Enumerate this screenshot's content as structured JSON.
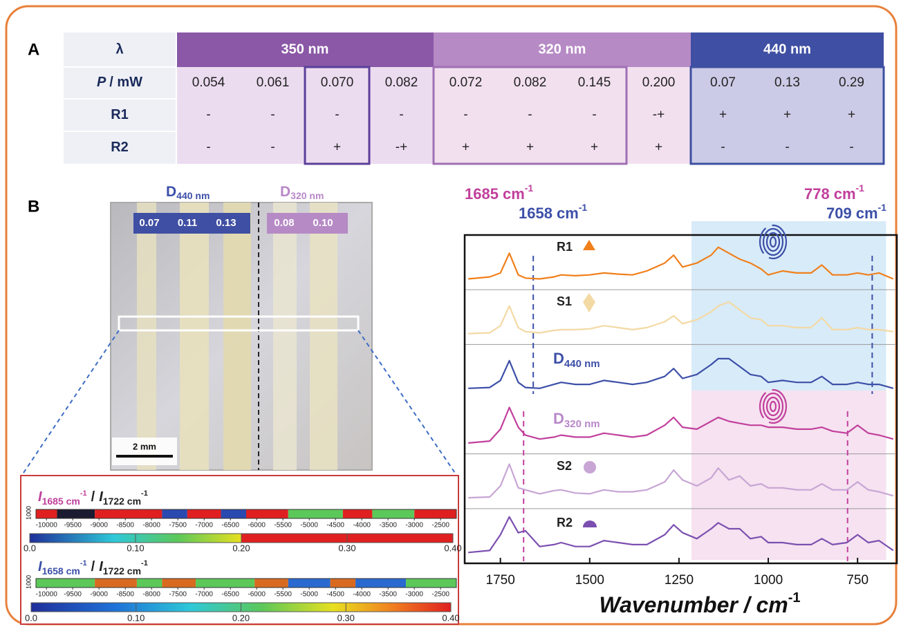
{
  "panel_a": {
    "label": "A",
    "table": {
      "header": [
        "λ",
        "350 nm",
        "320 nm",
        "440 nm"
      ],
      "rows": [
        {
          "label": {
            "symbol": "P",
            "unit": "/ mW"
          },
          "cells": [
            "0.054",
            "0.061",
            "0.070",
            "0.082",
            "0.072",
            "0.082",
            "0.145",
            "0.200",
            "0.07",
            "0.13",
            "0.29"
          ]
        },
        {
          "label": "R1",
          "cells": [
            "-",
            "-",
            "-",
            "-",
            "-",
            "-",
            "-",
            "-+",
            "+",
            "+",
            "+"
          ]
        },
        {
          "label": "R2",
          "cells": [
            "-",
            "-",
            "+",
            "-+",
            "+",
            "+",
            "+",
            "+",
            "-",
            "-",
            "-"
          ]
        }
      ]
    }
  },
  "panel_b": {
    "label": "B",
    "photo": {
      "labels": [
        {
          "name": "D",
          "subscript": "440 nm",
          "values": [
            "0.07",
            "0.11",
            "0.13"
          ]
        },
        {
          "name": "D",
          "subscript": "320 nm",
          "values": [
            "0.08",
            "0.10"
          ]
        }
      ],
      "scale_bar": "2 mm"
    },
    "maps": [
      {
        "numerator": {
          "symbol": "I",
          "subscript": "1685 cm",
          "sup": "-1"
        },
        "separator": "/",
        "denominator": {
          "symbol": "I",
          "subscript": "1722 cm",
          "sup": "-1"
        },
        "y_label": "1000",
        "xlim": [
          -10200,
          -2200
        ],
        "xticks": [
          -10000,
          -9500,
          -9000,
          -8500,
          -8000,
          -7500,
          -7000,
          -6500,
          -6000,
          -5500,
          -5000,
          -4500,
          -4000,
          -3500,
          -3000,
          -2500
        ],
        "colorbar_lim": [
          0,
          0.4
        ],
        "colorbar_ticks": [
          {
            "value": 0,
            "label": "0.0"
          },
          {
            "value": 0.1,
            "label": "0.10"
          },
          {
            "value": 0.2,
            "label": "0.20"
          },
          {
            "value": 0.3,
            "label": "0.30"
          },
          {
            "value": 0.4,
            "label": "0.40"
          }
        ]
      },
      {
        "numerator": {
          "symbol": "I",
          "subscript": "1658 cm",
          "sup": "-1"
        },
        "separator": "/",
        "denominator": {
          "symbol": "I",
          "subscript": "1722 cm",
          "sup": "-1"
        },
        "y_label": "1000",
        "xlim": [
          -10200,
          -2200
        ],
        "xticks": [
          -10000,
          -9500,
          -9000,
          -8500,
          -8000,
          -7500,
          -7000,
          -6500,
          -6000,
          -5500,
          -5000,
          -4500,
          -4000,
          -3500,
          -3000,
          -2500
        ],
        "colorbar_lim": [
          0,
          0.4
        ],
        "colorbar_ticks": [
          {
            "value": 0,
            "label": "0.0"
          },
          {
            "value": 0.1,
            "label": "0.10"
          },
          {
            "value": 0.2,
            "label": "0.20"
          },
          {
            "value": 0.3,
            "label": "0.30"
          },
          {
            "value": 0.4,
            "label": "0.40"
          }
        ]
      }
    ]
  },
  "chart_data": {
    "type": "line",
    "x_label": {
      "text": "Wavenumber / cm",
      "sup": "-1"
    },
    "xlim": [
      1850,
      640
    ],
    "xticks": [
      1750,
      1500,
      1250,
      1000,
      750
    ],
    "x": [
      1840,
      1780,
      1750,
      1725,
      1700,
      1680,
      1640,
      1600,
      1580,
      1540,
      1500,
      1460,
      1420,
      1380,
      1340,
      1290,
      1265,
      1240,
      1200,
      1160,
      1140,
      1110,
      1080,
      1050,
      1020,
      1000,
      960,
      920,
      880,
      850,
      820,
      780,
      750,
      720,
      690,
      650
    ],
    "regions": [
      {
        "from": 1215,
        "to": 670,
        "color": "#d8ebf8",
        "markers": [
          {
            "value": 1658,
            "unit": "cm",
            "sup": "-1",
            "color": "#3c4fa8"
          },
          {
            "value": 709,
            "unit": "cm",
            "sup": "-1",
            "color": "#3c4fa8"
          }
        ]
      },
      {
        "from": 1215,
        "to": 670,
        "color": "#f6e2f0",
        "markers": [
          {
            "value": 1685,
            "unit": "cm",
            "sup": "-1",
            "color": "#c13f9c"
          },
          {
            "value": 778,
            "unit": "cm",
            "sup": "-1",
            "color": "#c13f9c"
          }
        ]
      }
    ],
    "series": [
      {
        "name": "R1",
        "color": "#f07f1a",
        "label_color": "#222222",
        "values": [
          0.1,
          0.15,
          0.25,
          0.75,
          0.2,
          0.12,
          0.1,
          0.15,
          0.2,
          0.18,
          0.2,
          0.25,
          0.22,
          0.2,
          0.3,
          0.5,
          0.7,
          0.4,
          0.5,
          0.7,
          0.9,
          0.75,
          0.6,
          0.5,
          0.35,
          0.2,
          0.3,
          0.25,
          0.25,
          0.45,
          0.2,
          0.2,
          0.25,
          0.2,
          0.25,
          0.1
        ]
      },
      {
        "name": "S1",
        "color": "#f3d9a4",
        "label_color": "#222222",
        "values": [
          0.1,
          0.12,
          0.3,
          0.8,
          0.25,
          0.15,
          0.12,
          0.18,
          0.2,
          0.2,
          0.22,
          0.3,
          0.25,
          0.2,
          0.25,
          0.4,
          0.55,
          0.35,
          0.45,
          0.65,
          0.8,
          0.9,
          0.7,
          0.5,
          0.45,
          0.3,
          0.3,
          0.25,
          0.25,
          0.5,
          0.2,
          0.2,
          0.25,
          0.2,
          0.2,
          0.15
        ]
      },
      {
        "name": "D",
        "subscript": "440 nm",
        "color": "#3c4fa8",
        "label_color": "#3c4fa8",
        "values": [
          0.1,
          0.12,
          0.3,
          0.8,
          0.25,
          0.12,
          0.1,
          0.2,
          0.25,
          0.2,
          0.2,
          0.3,
          0.25,
          0.2,
          0.25,
          0.4,
          0.6,
          0.35,
          0.45,
          0.7,
          0.85,
          0.85,
          0.65,
          0.45,
          0.4,
          0.25,
          0.3,
          0.25,
          0.25,
          0.4,
          0.2,
          0.2,
          0.25,
          0.2,
          0.2,
          0.1
        ]
      },
      {
        "name": "D",
        "subscript": "320 nm",
        "color": "#c13f9c",
        "label_color": "#b888c8",
        "values": [
          0.1,
          0.15,
          0.45,
          1.0,
          0.5,
          0.3,
          0.2,
          0.25,
          0.3,
          0.25,
          0.25,
          0.35,
          0.3,
          0.25,
          0.3,
          0.55,
          0.75,
          0.5,
          0.45,
          0.65,
          0.75,
          0.65,
          0.6,
          0.55,
          0.55,
          0.5,
          0.5,
          0.45,
          0.45,
          0.5,
          0.4,
          0.35,
          0.55,
          0.35,
          0.3,
          0.2
        ]
      },
      {
        "name": "S2",
        "color": "#c7a5d4",
        "label_color": "#222222",
        "values": [
          0.1,
          0.12,
          0.4,
          0.95,
          0.35,
          0.3,
          0.2,
          0.28,
          0.3,
          0.22,
          0.2,
          0.3,
          0.25,
          0.25,
          0.3,
          0.5,
          0.8,
          0.55,
          0.4,
          0.6,
          0.85,
          0.55,
          0.65,
          0.4,
          0.45,
          0.35,
          0.35,
          0.3,
          0.3,
          0.45,
          0.3,
          0.3,
          0.5,
          0.3,
          0.25,
          0.15
        ]
      },
      {
        "name": "R2",
        "color": "#7b4fb0",
        "label_color": "#222222",
        "values": [
          0.1,
          0.15,
          0.55,
          1.0,
          0.6,
          0.65,
          0.25,
          0.3,
          0.35,
          0.25,
          0.25,
          0.4,
          0.35,
          0.3,
          0.3,
          0.55,
          0.8,
          0.6,
          0.45,
          0.7,
          0.85,
          0.7,
          0.7,
          0.45,
          0.5,
          0.35,
          0.35,
          0.3,
          0.3,
          0.45,
          0.3,
          0.35,
          0.55,
          0.35,
          0.4,
          0.15
        ]
      }
    ]
  }
}
